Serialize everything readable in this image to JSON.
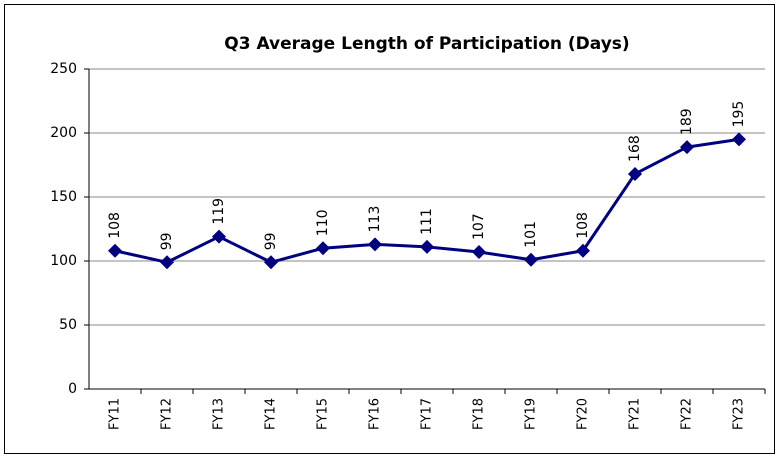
{
  "chart_data": {
    "type": "line",
    "title": "Q3 Average Length of Participation (Days)",
    "categories": [
      "FY11",
      "FY12",
      "FY13",
      "FY14",
      "FY15",
      "FY16",
      "FY17",
      "FY18",
      "FY19",
      "FY20",
      "FY21",
      "FY22",
      "FY23"
    ],
    "values": [
      108,
      99,
      119,
      99,
      110,
      113,
      111,
      107,
      101,
      108,
      168,
      189,
      195
    ],
    "color": "#000080",
    "ylim": [
      0,
      250
    ],
    "yticks": [
      0,
      50,
      100,
      150,
      200,
      250
    ],
    "grid": true
  }
}
